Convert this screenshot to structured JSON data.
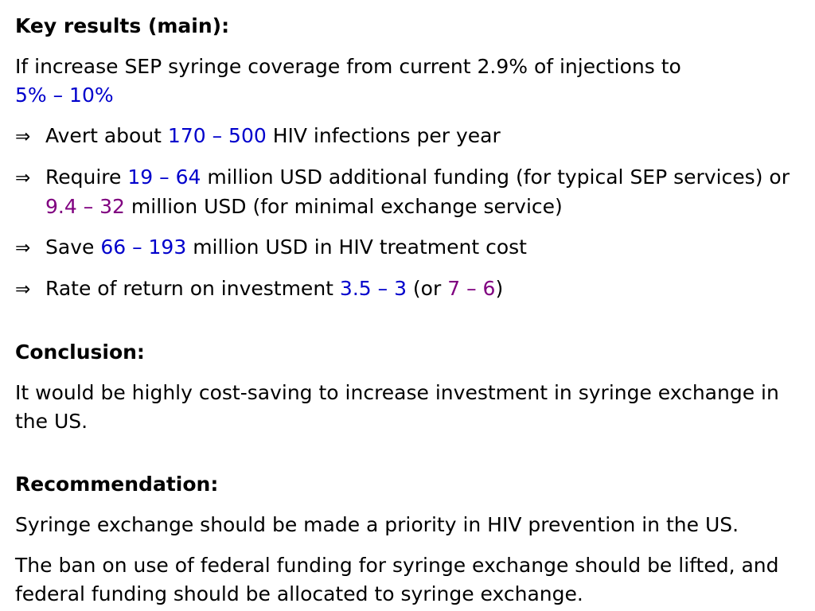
{
  "colors": {
    "text": "#000000",
    "highlight_blue": "#0000cc",
    "highlight_purple": "#800080",
    "background": "#ffffff"
  },
  "key_results": {
    "heading": "Key results (main):",
    "intro_text": "If increase SEP syringe coverage from current 2.9% of injections to",
    "intro_range": "5% – 10%",
    "arrow_symbol": "⇒",
    "avert": {
      "prefix": "Avert about ",
      "value": "170 – 500",
      "suffix": " HIV infections per year"
    },
    "require": {
      "prefix": "Require ",
      "value_typical": "19 – 64",
      "middle": " million USD additional funding (for typical SEP services) or ",
      "value_minimal": "9.4 – 32",
      "suffix": " million USD (for minimal exchange service)"
    },
    "save": {
      "prefix": "Save ",
      "value": "66 – 193",
      "suffix": " million USD in HIV treatment cost"
    },
    "return": {
      "prefix": "Rate of return on investment ",
      "value_typical": "3.5 – 3",
      "middle": " (or ",
      "value_minimal": "7 – 6",
      "suffix": ")"
    }
  },
  "conclusion": {
    "heading": "Conclusion:",
    "text": "It would be highly cost-saving to increase investment in syringe exchange in the US."
  },
  "recommendation": {
    "heading": "Recommendation:",
    "text_1": "Syringe exchange should be made a priority in HIV prevention in the US.",
    "text_2": "The ban on use of federal funding for syringe exchange should be lifted, and federal funding should be allocated to syringe exchange."
  }
}
